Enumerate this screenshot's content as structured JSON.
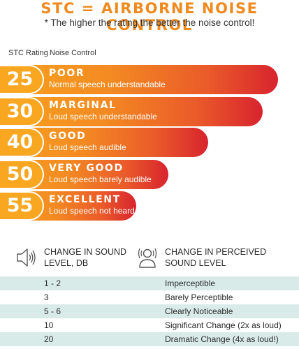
{
  "header": {
    "title": "STC = AIRBORNE NOISE CONTROL",
    "subtitle": "* The higher the rating the better the noise control!"
  },
  "columns": {
    "rating": "STC Rating",
    "control": "Noise Control"
  },
  "ratings": [
    {
      "value": "25",
      "label": "POOR",
      "description": "Normal speech understandable"
    },
    {
      "value": "30",
      "label": "MARGINAL",
      "description": "Loud speech understandable"
    },
    {
      "value": "40",
      "label": "GOOD",
      "description": "Loud speech audible"
    },
    {
      "value": "50",
      "label": "VERY GOOD",
      "description": "Loud speech barely audible"
    },
    {
      "value": "55",
      "label": "EXCELLENT",
      "description": "Loud speech not heard"
    }
  ],
  "table": {
    "header_left": "CHANGE IN SOUND\nLEVEL, DB",
    "header_right": "CHANGE IN PERCEIVED\nSOUND LEVEL",
    "left_icon": "speaker-icon",
    "right_icon": "listener-icon",
    "rows": [
      {
        "db": "1 - 2",
        "perceived": "Imperceptible"
      },
      {
        "db": "3",
        "perceived": "Barely Perceptible"
      },
      {
        "db": "5 - 6",
        "perceived": "Clearly Noticeable"
      },
      {
        "db": "10",
        "perceived": "Significant Change (2x as loud)"
      },
      {
        "db": "20",
        "perceived": "Dramatic Change (4x as loud!)"
      }
    ]
  },
  "colors": {
    "accent": "#f08a1e",
    "pill": "#f9a620",
    "bar_start": "#f9a31f",
    "bar_end": "#d8242e",
    "row_shade": "#d9ebe9"
  }
}
